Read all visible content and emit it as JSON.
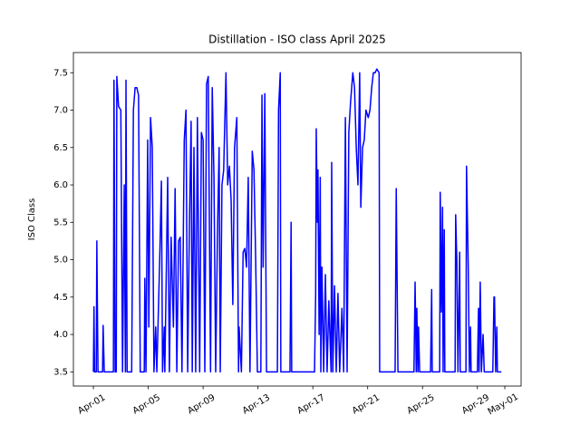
{
  "chart_data": {
    "type": "line",
    "title": "Distillation - ISO class April 2025",
    "y_label": "ISO Class",
    "color": "#0000ff",
    "xlim": [
      "2025-03-30T13:00",
      "2025-05-02T04:30"
    ],
    "xticks": [
      {
        "value": "2025-04-01T00:00",
        "label": "Apr-01"
      },
      {
        "value": "2025-04-05T00:00",
        "label": "Apr-05"
      },
      {
        "value": "2025-04-09T00:00",
        "label": "Apr-09"
      },
      {
        "value": "2025-04-13T00:00",
        "label": "Apr-13"
      },
      {
        "value": "2025-04-17T00:00",
        "label": "Apr-17"
      },
      {
        "value": "2025-04-21T00:00",
        "label": "Apr-21"
      },
      {
        "value": "2025-04-25T00:00",
        "label": "Apr-25"
      },
      {
        "value": "2025-04-29T00:00",
        "label": "Apr-29"
      },
      {
        "value": "2025-05-01T00:00",
        "label": "May-01"
      }
    ],
    "ylim": [
      3.31,
      7.77
    ],
    "yticks": [
      3.5,
      {
        "value": 4,
        "label": "4.0"
      },
      4.5,
      {
        "value": 5,
        "label": "5.0"
      },
      5.5,
      {
        "value": 6,
        "label": "6.0"
      },
      6.5,
      {
        "value": 7,
        "label": "7.0"
      },
      7.5
    ],
    "x": [
      "2025-04-01T00:00",
      "2025-04-01T01:00",
      "2025-04-01T02:00",
      "2025-04-01T05:00",
      "2025-04-01T06:00",
      "2025-04-01T08:00",
      "2025-04-01T16:00",
      "2025-04-01T17:00",
      "2025-04-01T19:00",
      "2025-04-02T11:00",
      "2025-04-02T12:00",
      "2025-04-02T14:00",
      "2025-04-02T16:00",
      "2025-04-02T17:00",
      "2025-04-02T20:00",
      "2025-04-03T00:00",
      "2025-04-03T03:00",
      "2025-04-03T06:00",
      "2025-04-03T08:00",
      "2025-04-03T09:00",
      "2025-04-03T11:00",
      "2025-04-03T19:00",
      "2025-04-03T22:00",
      "2025-04-04T01:00",
      "2025-04-04T04:00",
      "2025-04-04T07:00",
      "2025-04-04T10:00",
      "2025-04-04T17:00",
      "2025-04-04T18:00",
      "2025-04-04T20:00",
      "2025-04-04T23:00",
      "2025-04-05T01:00",
      "2025-04-05T04:00",
      "2025-04-05T07:00",
      "2025-04-05T10:00",
      "2025-04-05T13:00",
      "2025-04-05T15:00",
      "2025-04-05T20:00",
      "2025-04-05T23:00",
      "2025-04-06T01:00",
      "2025-04-06T04:00",
      "2025-04-06T05:00",
      "2025-04-06T10:00",
      "2025-04-06T13:00",
      "2025-04-06T16:00",
      "2025-04-06T20:00",
      "2025-04-06T23:00",
      "2025-04-07T02:00",
      "2025-04-07T05:00",
      "2025-04-07T08:00",
      "2025-04-07T11:00",
      "2025-04-07T15:00",
      "2025-04-07T18:00",
      "2025-04-07T21:00",
      "2025-04-08T00:00",
      "2025-04-08T03:00",
      "2025-04-08T05:00",
      "2025-04-08T08:00",
      "2025-04-08T11:00",
      "2025-04-08T14:00",
      "2025-04-08T18:00",
      "2025-04-08T21:00",
      "2025-04-09T00:00",
      "2025-04-09T03:00",
      "2025-04-09T06:00",
      "2025-04-09T09:00",
      "2025-04-09T13:00",
      "2025-04-09T16:00",
      "2025-04-09T19:00",
      "2025-04-09T22:00",
      "2025-04-10T01:00",
      "2025-04-10T04:00",
      "2025-04-10T06:00",
      "2025-04-10T09:00",
      "2025-04-10T12:00",
      "2025-04-10T16:00",
      "2025-04-10T19:00",
      "2025-04-10T22:00",
      "2025-04-11T01:00",
      "2025-04-11T04:00",
      "2025-04-11T07:00",
      "2025-04-11T11:00",
      "2025-04-11T14:00",
      "2025-04-11T15:00",
      "2025-04-11T19:00",
      "2025-04-11T22:00",
      "2025-04-12T01:00",
      "2025-04-12T04:00",
      "2025-04-12T07:00",
      "2025-04-12T10:00",
      "2025-04-12T14:00",
      "2025-04-12T17:00",
      "2025-04-12T20:00",
      "2025-04-12T23:00",
      "2025-04-13T05:00",
      "2025-04-13T07:00",
      "2025-04-13T09:00",
      "2025-04-13T12:00",
      "2025-04-13T15:00",
      "2025-04-14T10:00",
      "2025-04-14T12:00",
      "2025-04-14T15:00",
      "2025-04-14T16:00",
      "2025-04-15T08:00",
      "2025-04-15T10:00",
      "2025-04-15T11:00",
      "2025-04-17T03:00",
      "2025-04-17T05:00",
      "2025-04-17T06:00",
      "2025-04-17T08:00",
      "2025-04-17T09:00",
      "2025-04-17T11:00",
      "2025-04-17T13:00",
      "2025-04-17T14:00",
      "2025-04-17T16:00",
      "2025-04-17T19:00",
      "2025-04-17T22:00",
      "2025-04-18T01:00",
      "2025-04-18T04:00",
      "2025-04-18T08:00",
      "2025-04-18T09:00",
      "2025-04-18T11:00",
      "2025-04-18T14:00",
      "2025-04-18T17:00",
      "2025-04-18T20:00",
      "2025-04-18T23:00",
      "2025-04-19T03:00",
      "2025-04-19T06:00",
      "2025-04-19T09:00",
      "2025-04-19T12:00",
      "2025-04-19T15:00",
      "2025-04-19T18:00",
      "2025-04-19T22:00",
      "2025-04-20T01:00",
      "2025-04-20T04:00",
      "2025-04-20T07:00",
      "2025-04-20T10:00",
      "2025-04-20T12:00",
      "2025-04-20T15:00",
      "2025-04-20T18:00",
      "2025-04-20T21:00",
      "2025-04-21T01:00",
      "2025-04-21T04:00",
      "2025-04-21T07:00",
      "2025-04-21T10:00",
      "2025-04-21T13:00",
      "2025-04-21T16:00",
      "2025-04-21T20:00",
      "2025-04-21T21:00",
      "2025-04-23T00:00",
      "2025-04-23T02:00",
      "2025-04-23T05:00",
      "2025-04-24T09:00",
      "2025-04-24T11:00",
      "2025-04-24T13:00",
      "2025-04-24T14:00",
      "2025-04-24T16:00",
      "2025-04-24T17:00",
      "2025-04-24T19:00",
      "2025-04-25T14:00",
      "2025-04-25T16:00",
      "2025-04-25T17:00",
      "2025-04-26T06:00",
      "2025-04-26T07:00",
      "2025-04-26T09:00",
      "2025-04-26T11:00",
      "2025-04-26T12:00",
      "2025-04-26T14:00",
      "2025-04-26T15:00",
      "2025-04-27T09:00",
      "2025-04-27T10:00",
      "2025-04-27T12:00",
      "2025-04-27T14:00",
      "2025-04-27T17:00",
      "2025-04-27T18:00",
      "2025-04-28T04:00",
      "2025-04-28T05:00",
      "2025-04-28T08:00",
      "2025-04-28T10:00",
      "2025-04-28T12:00",
      "2025-04-28T13:00",
      "2025-04-29T00:00",
      "2025-04-29T02:00",
      "2025-04-29T03:00",
      "2025-04-29T05:00",
      "2025-04-29T07:00",
      "2025-04-29T10:00",
      "2025-04-29T12:00",
      "2025-04-30T03:00",
      "2025-04-30T05:00",
      "2025-04-30T06:00",
      "2025-04-30T08:00",
      "2025-04-30T10:00",
      "2025-04-30T11:00",
      "2025-04-30T18:00"
    ],
    "values": [
      3.5,
      4.37,
      3.5,
      3.5,
      5.25,
      3.5,
      3.5,
      4.12,
      3.5,
      3.5,
      7.4,
      3.5,
      3.5,
      7.45,
      7.05,
      7.0,
      3.5,
      6.0,
      3.5,
      7.4,
      3.5,
      3.5,
      7.0,
      7.3,
      7.3,
      7.2,
      3.5,
      3.5,
      4.75,
      3.5,
      6.6,
      4.1,
      6.9,
      6.5,
      3.5,
      4.1,
      3.5,
      5.0,
      6.05,
      3.5,
      4.1,
      3.5,
      6.1,
      3.5,
      5.3,
      4.1,
      5.95,
      3.5,
      5.25,
      5.3,
      3.5,
      6.6,
      7.0,
      3.5,
      5.45,
      6.85,
      3.5,
      6.5,
      3.5,
      6.9,
      3.5,
      6.7,
      6.6,
      3.5,
      7.35,
      7.45,
      3.5,
      7.3,
      6.1,
      3.5,
      5.3,
      6.5,
      3.5,
      6.0,
      6.2,
      7.5,
      6.0,
      6.25,
      5.8,
      4.4,
      6.5,
      6.9,
      3.5,
      4.1,
      3.5,
      5.1,
      5.15,
      4.9,
      6.1,
      3.5,
      6.45,
      6.2,
      5.0,
      3.5,
      3.5,
      7.2,
      4.9,
      7.22,
      3.5,
      3.5,
      7.0,
      7.5,
      3.5,
      3.5,
      5.5,
      3.5,
      3.5,
      4.55,
      6.75,
      5.5,
      6.2,
      4.0,
      6.1,
      3.5,
      4.9,
      3.5,
      4.8,
      3.5,
      4.45,
      3.5,
      6.3,
      3.5,
      4.65,
      3.5,
      4.55,
      3.5,
      4.35,
      3.5,
      6.9,
      3.5,
      6.7,
      7.1,
      7.5,
      7.3,
      6.5,
      6.0,
      7.5,
      5.7,
      6.5,
      6.6,
      7.0,
      6.9,
      7.0,
      7.3,
      7.5,
      7.5,
      7.55,
      7.5,
      3.5,
      3.5,
      5.95,
      3.5,
      3.5,
      4.7,
      3.5,
      4.35,
      3.5,
      4.1,
      3.5,
      3.5,
      4.6,
      3.5,
      3.5,
      5.9,
      4.3,
      5.7,
      3.5,
      5.4,
      3.5,
      3.5,
      5.6,
      5.0,
      3.5,
      5.1,
      3.5,
      3.5,
      6.25,
      4.9,
      3.5,
      4.1,
      3.5,
      3.5,
      4.35,
      3.5,
      4.7,
      3.5,
      4.0,
      3.5,
      3.5,
      4.5,
      4.5,
      3.5,
      4.1,
      3.5,
      3.5
    ]
  }
}
